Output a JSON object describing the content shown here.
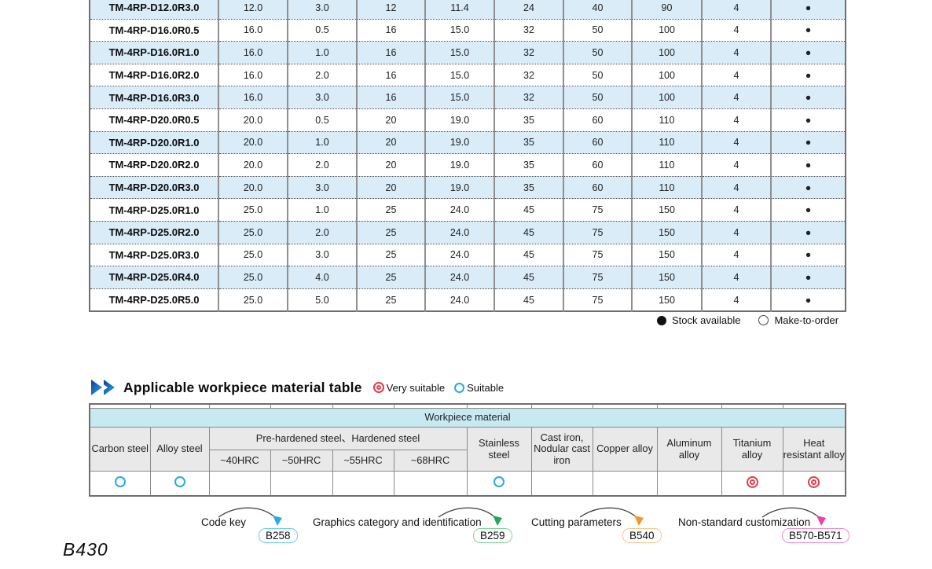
{
  "spec_table": {
    "rows": [
      {
        "model": "TM-4RP-D12.0R3.0",
        "values": [
          "12.0",
          "3.0",
          "12",
          "11.4",
          "24",
          "40",
          "90",
          "4"
        ],
        "stock": "●"
      },
      {
        "model": "TM-4RP-D16.0R0.5",
        "values": [
          "16.0",
          "0.5",
          "16",
          "15.0",
          "32",
          "50",
          "100",
          "4"
        ],
        "stock": "●"
      },
      {
        "model": "TM-4RP-D16.0R1.0",
        "values": [
          "16.0",
          "1.0",
          "16",
          "15.0",
          "32",
          "50",
          "100",
          "4"
        ],
        "stock": "●"
      },
      {
        "model": "TM-4RP-D16.0R2.0",
        "values": [
          "16.0",
          "2.0",
          "16",
          "15.0",
          "32",
          "50",
          "100",
          "4"
        ],
        "stock": "●"
      },
      {
        "model": "TM-4RP-D16.0R3.0",
        "values": [
          "16.0",
          "3.0",
          "16",
          "15.0",
          "32",
          "50",
          "100",
          "4"
        ],
        "stock": "●"
      },
      {
        "model": "TM-4RP-D20.0R0.5",
        "values": [
          "20.0",
          "0.5",
          "20",
          "19.0",
          "35",
          "60",
          "110",
          "4"
        ],
        "stock": "●"
      },
      {
        "model": "TM-4RP-D20.0R1.0",
        "values": [
          "20.0",
          "1.0",
          "20",
          "19.0",
          "35",
          "60",
          "110",
          "4"
        ],
        "stock": "●"
      },
      {
        "model": "TM-4RP-D20.0R2.0",
        "values": [
          "20.0",
          "2.0",
          "20",
          "19.0",
          "35",
          "60",
          "110",
          "4"
        ],
        "stock": "●"
      },
      {
        "model": "TM-4RP-D20.0R3.0",
        "values": [
          "20.0",
          "3.0",
          "20",
          "19.0",
          "35",
          "60",
          "110",
          "4"
        ],
        "stock": "●"
      },
      {
        "model": "TM-4RP-D25.0R1.0",
        "values": [
          "25.0",
          "1.0",
          "25",
          "24.0",
          "45",
          "75",
          "150",
          "4"
        ],
        "stock": "●"
      },
      {
        "model": "TM-4RP-D25.0R2.0",
        "values": [
          "25.0",
          "2.0",
          "25",
          "24.0",
          "45",
          "75",
          "150",
          "4"
        ],
        "stock": "●"
      },
      {
        "model": "TM-4RP-D25.0R3.0",
        "values": [
          "25.0",
          "3.0",
          "25",
          "24.0",
          "45",
          "75",
          "150",
          "4"
        ],
        "stock": "●"
      },
      {
        "model": "TM-4RP-D25.0R4.0",
        "values": [
          "25.0",
          "4.0",
          "25",
          "24.0",
          "45",
          "75",
          "150",
          "4"
        ],
        "stock": "●"
      },
      {
        "model": "TM-4RP-D25.0R5.0",
        "values": [
          "25.0",
          "5.0",
          "25",
          "24.0",
          "45",
          "75",
          "150",
          "4"
        ],
        "stock": "●"
      }
    ]
  },
  "stock_legend": {
    "available_label": "Stock available",
    "mto_label": "Make-to-order"
  },
  "material_section": {
    "title": "Applicable workpiece material table",
    "very_suitable_label": "Very suitable",
    "suitable_label": "Suitable",
    "table": {
      "span_header": "Workpiece material",
      "group_header": "Pre-hardened steel、Hardened steel",
      "columns": {
        "carbon": "Carbon steel",
        "alloy": "Alloy steel",
        "stainless": "Stainless steel",
        "cast_iron": "Cast iron, Nodular cast iron",
        "copper": "Copper alloy",
        "aluminum": "Aluminum alloy",
        "titanium": "Titanium alloy",
        "heat": "Heat resistant alloy"
      },
      "hrc_headers": [
        "~40HRC",
        "~50HRC",
        "~55HRC",
        "~68HRC"
      ],
      "ratings": [
        "suitable",
        "suitable",
        "",
        "",
        "",
        "",
        "suitable",
        "",
        "",
        "",
        "very_suitable",
        "very_suitable"
      ]
    }
  },
  "footer_links": [
    {
      "label": "Code key",
      "code": "B258",
      "accent": "#29abe2"
    },
    {
      "label": "Graphics category and identification",
      "code": "B259",
      "accent": "#22a958"
    },
    {
      "label": "Cutting parameters",
      "code": "B540",
      "accent": "#f5962a"
    },
    {
      "label": "Non-standard customization",
      "code": "B570-B571",
      "accent": "#ef3f9f"
    }
  ],
  "page_number": "B430",
  "colors": {
    "stripe_blue": "#d9ecf8",
    "cyan_header": "#c7e9f1",
    "gray_header": "#e9e9e9",
    "suitable_ring": "#29a9e0",
    "very_suitable_ring": "#e43c4c"
  }
}
